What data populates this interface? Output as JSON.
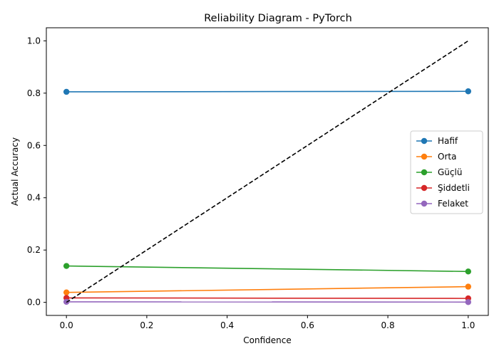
{
  "chart_data": {
    "type": "line",
    "title": "Reliability Diagram - PyTorch",
    "xlabel": "Confidence",
    "ylabel": "Actual Accuracy",
    "xlim": [
      -0.05,
      1.05
    ],
    "ylim": [
      -0.05,
      1.05
    ],
    "xticks": [
      "0.0",
      "0.2",
      "0.4",
      "0.6",
      "0.8",
      "1.0"
    ],
    "yticks": [
      "0.0",
      "0.2",
      "0.4",
      "0.6",
      "0.8",
      "1.0"
    ],
    "grid": false,
    "legend_position": "center-right",
    "reference_line": {
      "x": [
        0,
        1
      ],
      "y": [
        0,
        1
      ],
      "color": "#000000",
      "style": "dashed"
    },
    "series": [
      {
        "name": "Hafif",
        "color": "#1f77b4",
        "x": [
          0.0,
          1.0
        ],
        "y": [
          0.805,
          0.807
        ]
      },
      {
        "name": "Orta",
        "color": "#ff7f0e",
        "x": [
          0.0,
          1.0
        ],
        "y": [
          0.038,
          0.06
        ]
      },
      {
        "name": "Güçlü",
        "color": "#2ca02c",
        "x": [
          0.0,
          1.0
        ],
        "y": [
          0.139,
          0.118
        ]
      },
      {
        "name": "Şiddetli",
        "color": "#d62728",
        "x": [
          0.0,
          1.0
        ],
        "y": [
          0.017,
          0.015
        ]
      },
      {
        "name": "Felaket",
        "color": "#9467bd",
        "x": [
          0.0,
          1.0
        ],
        "y": [
          0.002,
          0.001
        ]
      }
    ]
  }
}
